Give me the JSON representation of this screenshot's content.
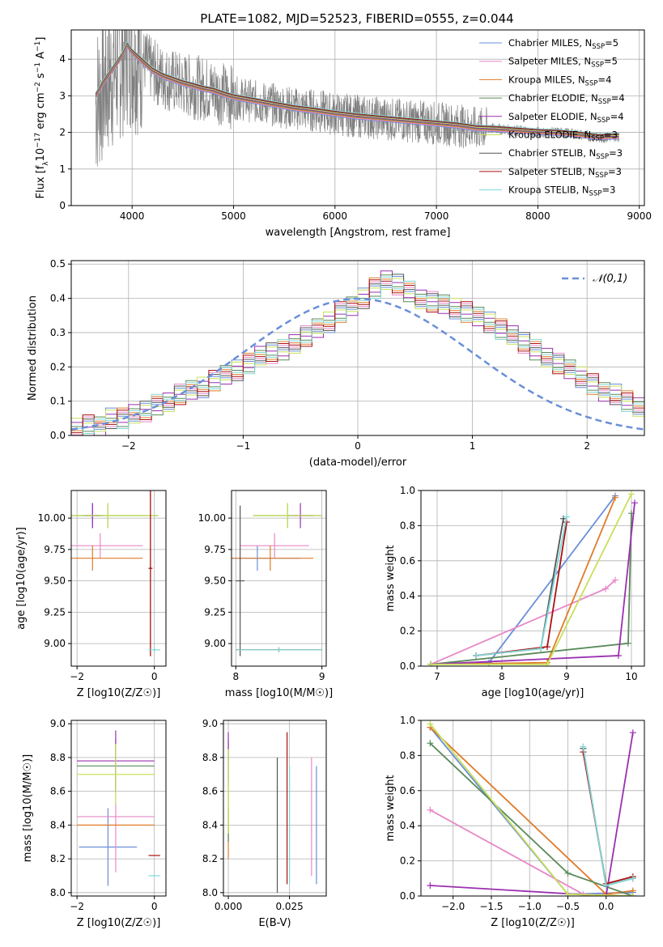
{
  "figure": {
    "title": "PLATE=1082, MJD=52523, FIBERID=0555, z=0.044"
  },
  "series_names": [
    "Chabrier MILES, N_SSP=5",
    "Salpeter MILES, N_SSP=5",
    "Kroupa MILES, N_SSP=4",
    "Chabrier ELODIE, N_SSP=4",
    "Salpeter ELODIE, N_SSP=4",
    "Kroupa ELODIE, N_SSP=3",
    "Chabrier STELIB, N_SSP=3",
    "Salpeter STELIB, N_SSP=3",
    "Kroupa STELIB, N_SSP=3"
  ],
  "legend_labels": [
    {
      "pre": "Chabrier MILES, N",
      "sub": "SSP",
      "post": "=5"
    },
    {
      "pre": "Salpeter MILES, N",
      "sub": "SSP",
      "post": "=5"
    },
    {
      "pre": "Kroupa MILES, N",
      "sub": "SSP",
      "post": "=4"
    },
    {
      "pre": "Chabrier ELODIE, N",
      "sub": "SSP",
      "post": "=4"
    },
    {
      "pre": "Salpeter ELODIE, N",
      "sub": "SSP",
      "post": "=4"
    },
    {
      "pre": "Kroupa ELODIE, N",
      "sub": "SSP",
      "post": "=3"
    },
    {
      "pre": "Chabrier STELIB, N",
      "sub": "SSP",
      "post": "=3"
    },
    {
      "pre": "Salpeter STELIB, N",
      "sub": "SSP",
      "post": "=3"
    },
    {
      "pre": "Kroupa STELIB, N",
      "sub": "SSP",
      "post": "=3"
    }
  ],
  "series_colors": [
    "#6a8fd8",
    "#e888c8",
    "#e07b2a",
    "#5a8a5a",
    "#9b30b0",
    "#c8e05a",
    "#555555",
    "#aa1111",
    "#80d8d8"
  ],
  "chart_data": [
    {
      "id": "spectrum",
      "type": "line",
      "title": "PLATE=1082, MJD=52523, FIBERID=0555, z=0.044",
      "xlabel": "wavelength [Angstrom, rest frame]",
      "ylabel_parts": {
        "pre": "Flux [f",
        "sub1": "λ",
        "mid": "10",
        "sup1": "−17",
        "mid2": " erg cm",
        "sup2": "−2",
        "mid3": " s",
        "sup3": "−1",
        "mid4": " A",
        "sup4": "−1",
        "post": "]"
      },
      "xlim": [
        3400,
        9050
      ],
      "ylim": [
        0,
        4.8
      ],
      "xticks": [
        4000,
        5000,
        6000,
        7000,
        8000,
        9000
      ],
      "yticks": [
        0,
        1,
        2,
        3,
        4
      ],
      "data_color": "#808080",
      "data": [
        [
          3640,
          2.8
        ],
        [
          3700,
          3.2
        ],
        [
          3800,
          3.6
        ],
        [
          3900,
          4.0
        ],
        [
          3950,
          4.3
        ],
        [
          4000,
          4.2
        ],
        [
          4100,
          4.0
        ],
        [
          4200,
          3.7
        ],
        [
          4300,
          3.5
        ],
        [
          4400,
          3.4
        ],
        [
          4500,
          3.3
        ],
        [
          4600,
          3.25
        ],
        [
          4700,
          3.2
        ],
        [
          4800,
          3.15
        ],
        [
          4900,
          3.05
        ],
        [
          5000,
          2.95
        ],
        [
          5200,
          2.85
        ],
        [
          5400,
          2.75
        ],
        [
          5600,
          2.65
        ],
        [
          5800,
          2.6
        ],
        [
          6000,
          2.5
        ],
        [
          6200,
          2.45
        ],
        [
          6400,
          2.4
        ],
        [
          6600,
          2.35
        ],
        [
          6800,
          2.3
        ],
        [
          7000,
          2.25
        ],
        [
          7200,
          2.2
        ],
        [
          7400,
          2.1
        ],
        [
          7600,
          2.1
        ],
        [
          7800,
          2.05
        ],
        [
          8000,
          2.0
        ],
        [
          8200,
          2.0
        ],
        [
          8400,
          1.95
        ],
        [
          8600,
          1.85
        ],
        [
          8800,
          1.9
        ]
      ],
      "model": [
        [
          3640,
          3.0
        ],
        [
          3700,
          3.3
        ],
        [
          3800,
          3.7
        ],
        [
          3900,
          4.1
        ],
        [
          3950,
          4.4
        ],
        [
          4000,
          4.2
        ],
        [
          4100,
          3.95
        ],
        [
          4200,
          3.7
        ],
        [
          4300,
          3.55
        ],
        [
          4400,
          3.45
        ],
        [
          4500,
          3.35
        ],
        [
          4600,
          3.28
        ],
        [
          4700,
          3.2
        ],
        [
          4800,
          3.15
        ],
        [
          4900,
          3.05
        ],
        [
          5000,
          2.97
        ],
        [
          5200,
          2.87
        ],
        [
          5400,
          2.77
        ],
        [
          5600,
          2.67
        ],
        [
          5800,
          2.6
        ],
        [
          6000,
          2.52
        ],
        [
          6200,
          2.45
        ],
        [
          6400,
          2.4
        ],
        [
          6600,
          2.35
        ],
        [
          6800,
          2.3
        ],
        [
          7000,
          2.25
        ],
        [
          7200,
          2.2
        ],
        [
          7400,
          2.12
        ],
        [
          7600,
          2.1
        ],
        [
          7800,
          2.06
        ],
        [
          8000,
          2.02
        ],
        [
          8200,
          2.0
        ],
        [
          8400,
          1.95
        ],
        [
          8600,
          1.88
        ],
        [
          8800,
          1.9
        ]
      ]
    },
    {
      "id": "residuals",
      "type": "histogram",
      "xlabel": "(data-model)/error",
      "ylabel": "Normed distribution",
      "xlim": [
        -2.5,
        2.5
      ],
      "ylim": [
        0,
        0.51
      ],
      "xticks": [
        -2,
        -1,
        0,
        1,
        2
      ],
      "yticks": [
        0.0,
        0.1,
        0.2,
        0.3,
        0.4,
        0.5
      ],
      "legend": "𝒩(0,1)",
      "bin_width": 0.1,
      "bin_start": -2.5,
      "values": [
        0.02,
        0.03,
        0.03,
        0.05,
        0.05,
        0.06,
        0.07,
        0.09,
        0.1,
        0.12,
        0.13,
        0.14,
        0.16,
        0.18,
        0.19,
        0.21,
        0.23,
        0.24,
        0.25,
        0.27,
        0.29,
        0.31,
        0.33,
        0.36,
        0.38,
        0.4,
        0.43,
        0.45,
        0.44,
        0.42,
        0.4,
        0.39,
        0.38,
        0.37,
        0.36,
        0.35,
        0.33,
        0.31,
        0.29,
        0.27,
        0.25,
        0.23,
        0.21,
        0.19,
        0.17,
        0.15,
        0.13,
        0.12,
        0.1,
        0.08
      ]
    },
    {
      "id": "age_vs_Z",
      "type": "errorbar",
      "xlabel": "Z [log10(Z/Z☉)]",
      "ylabel": "age [log10(age/yr)]",
      "xlim": [
        -2.15,
        0.3
      ],
      "ylim": [
        8.82,
        10.22
      ],
      "xticks": [
        -2,
        0
      ],
      "yticks": [
        9.0,
        9.25,
        9.5,
        9.75,
        10.0
      ],
      "points": [
        {
          "s": 0,
          "x": -1.6,
          "xe": 0.3,
          "y": 10.02,
          "ye": 0.1
        },
        {
          "s": 1,
          "x": -1.4,
          "xe": 1.1,
          "y": 9.78,
          "ye": 0.1
        },
        {
          "s": 2,
          "x": -1.6,
          "xe": 1.3,
          "y": 9.68,
          "ye": 0.1
        },
        {
          "s": 3,
          "x": -1.2,
          "xe": 1.3,
          "y": 10.02,
          "ye": 0.1
        },
        {
          "s": 4,
          "x": -1.6,
          "xe": 0.2,
          "y": 10.02,
          "ye": 0.1
        },
        {
          "s": 5,
          "x": -1.2,
          "xe": 1.3,
          "y": 10.02,
          "ye": 0.1
        },
        {
          "s": 6,
          "x": -0.1,
          "xe": 0.05,
          "y": 9.6,
          "ye": 0.7
        },
        {
          "s": 7,
          "x": -0.1,
          "xe": 0.05,
          "y": 9.6,
          "ye": 0.7
        },
        {
          "s": 8,
          "x": 0.0,
          "xe": 0.15,
          "y": 8.95,
          "ye": 0.02
        }
      ]
    },
    {
      "id": "age_vs_mass",
      "type": "errorbar",
      "xlabel": "mass [log10(M/M☉)]",
      "ylabel": "",
      "xlim": [
        7.95,
        9.05
      ],
      "ylim": [
        8.82,
        10.22
      ],
      "xticks": [
        8,
        9
      ],
      "yticks": [
        9.0,
        9.25,
        9.5,
        9.75,
        10.0
      ],
      "points": [
        {
          "s": 0,
          "x": 8.25,
          "xe": 0.5,
          "y": 9.68,
          "ye": 0.1
        },
        {
          "s": 1,
          "x": 8.45,
          "xe": 0.4,
          "y": 9.78,
          "ye": 0.1
        },
        {
          "s": 2,
          "x": 8.4,
          "xe": 0.5,
          "y": 9.68,
          "ye": 0.1
        },
        {
          "s": 3,
          "x": 8.6,
          "xe": 0.4,
          "y": 10.02,
          "ye": 0.1
        },
        {
          "s": 4,
          "x": 8.75,
          "xe": 0.15,
          "y": 10.02,
          "ye": 0.1
        },
        {
          "s": 5,
          "x": 8.6,
          "xe": 0.4,
          "y": 10.02,
          "ye": 0.1
        },
        {
          "s": 6,
          "x": 8.05,
          "xe": 0.05,
          "y": 9.5,
          "ye": 0.6
        },
        {
          "s": 7,
          "x": 8.5,
          "xe": 0.5,
          "y": 8.95,
          "ye": 0.02
        },
        {
          "s": 8,
          "x": 8.5,
          "xe": 0.5,
          "y": 8.95,
          "ye": 0.02
        }
      ]
    },
    {
      "id": "weight_vs_age",
      "type": "line",
      "xlabel": "age [log10(age/yr)]",
      "ylabel": "mass weight",
      "xlim": [
        6.75,
        10.2
      ],
      "ylim": [
        0,
        1
      ],
      "xticks": [
        7,
        8,
        9,
        10
      ],
      "yticks": [
        0.0,
        0.2,
        0.4,
        0.6,
        0.8,
        1.0
      ],
      "series": [
        {
          "s": 0,
          "x": [
            6.9,
            7.8,
            9.75
          ],
          "y": [
            0.01,
            0.02,
            0.97
          ]
        },
        {
          "s": 1,
          "x": [
            6.9,
            9.6,
            9.75
          ],
          "y": [
            0.01,
            0.44,
            0.49
          ]
        },
        {
          "s": 2,
          "x": [
            6.9,
            8.7,
            9.75
          ],
          "y": [
            0.01,
            0.02,
            0.96
          ]
        },
        {
          "s": 3,
          "x": [
            6.9,
            9.95,
            10.0
          ],
          "y": [
            0.01,
            0.13,
            0.87
          ]
        },
        {
          "s": 4,
          "x": [
            6.9,
            9.8,
            10.05
          ],
          "y": [
            0.01,
            0.06,
            0.93
          ]
        },
        {
          "s": 5,
          "x": [
            6.9,
            8.7,
            10.0
          ],
          "y": [
            0.01,
            0.01,
            0.98
          ]
        },
        {
          "s": 6,
          "x": [
            7.6,
            8.6,
            8.95
          ],
          "y": [
            0.06,
            0.1,
            0.84
          ]
        },
        {
          "s": 7,
          "x": [
            7.6,
            8.7,
            9.0
          ],
          "y": [
            0.06,
            0.11,
            0.82
          ]
        },
        {
          "s": 8,
          "x": [
            7.6,
            8.6,
            9.0
          ],
          "y": [
            0.06,
            0.1,
            0.85
          ]
        }
      ]
    },
    {
      "id": "mass_vs_Z",
      "type": "errorbar",
      "xlabel": "Z [log10(Z/Z☉)]",
      "ylabel": "mass [log10(M/M☉)]",
      "xlim": [
        -2.15,
        0.3
      ],
      "ylim": [
        7.98,
        9.02
      ],
      "xticks": [
        -2,
        0
      ],
      "yticks": [
        8.0,
        8.2,
        8.4,
        8.6,
        8.8,
        9.0
      ],
      "points": [
        {
          "s": 0,
          "x": -1.2,
          "xe": 0.75,
          "y": 8.27,
          "ye": 0.23
        },
        {
          "s": 1,
          "x": -1.0,
          "xe": 1.0,
          "y": 8.45,
          "ye": 0.33
        },
        {
          "s": 2,
          "x": -1.0,
          "xe": 1.0,
          "y": 8.4,
          "ye": 0.0
        },
        {
          "s": 3,
          "x": -1.0,
          "xe": 1.0,
          "y": 8.75,
          "ye": 0.16
        },
        {
          "s": 4,
          "x": -1.0,
          "xe": 1.0,
          "y": 8.78,
          "ye": 0.18
        },
        {
          "s": 5,
          "x": -1.0,
          "xe": 1.0,
          "y": 8.7,
          "ye": 0.18
        },
        {
          "s": 6,
          "x": -0.1,
          "xe": 0.0,
          "y": 8.05,
          "ye": 0.0
        },
        {
          "s": 7,
          "x": 0.0,
          "xe": 0.15,
          "y": 8.22,
          "ye": 0.0
        },
        {
          "s": 8,
          "x": 0.0,
          "xe": 0.15,
          "y": 8.1,
          "ye": 0.0
        }
      ]
    },
    {
      "id": "mass_vs_EBV",
      "type": "errorbar",
      "xlabel": "E(B-V)",
      "ylabel": "",
      "xlim": [
        -0.002,
        0.04
      ],
      "ylim": [
        7.98,
        9.02
      ],
      "xticks": [
        0.0,
        0.025
      ],
      "yticks": [
        8.0,
        8.2,
        8.4,
        8.6,
        8.8,
        9.0
      ],
      "points": [
        {
          "s": 0,
          "x": 0.036,
          "xe": 0,
          "y": 8.4,
          "ye": 0.35
        },
        {
          "s": 1,
          "x": 0.034,
          "xe": 0,
          "y": 8.45,
          "ye": 0.35
        },
        {
          "s": 2,
          "x": 0.0,
          "xe": 0,
          "y": 8.35,
          "ye": 0.15
        },
        {
          "s": 3,
          "x": 0.0,
          "xe": 0,
          "y": 8.6,
          "ye": 0.3
        },
        {
          "s": 4,
          "x": 0.0,
          "xe": 0,
          "y": 8.8,
          "ye": 0.15
        },
        {
          "s": 5,
          "x": 0.0,
          "xe": 0,
          "y": 8.6,
          "ye": 0.25
        },
        {
          "s": 6,
          "x": 0.02,
          "xe": 0,
          "y": 8.4,
          "ye": 0.4
        },
        {
          "s": 7,
          "x": 0.024,
          "xe": 0,
          "y": 8.5,
          "ye": 0.45
        },
        {
          "s": 8,
          "x": 0.025,
          "xe": 0,
          "y": 8.4,
          "ye": 0.35
        }
      ]
    },
    {
      "id": "weight_vs_Z",
      "type": "line",
      "xlabel": "Z [log10(Z/Z☉)]",
      "ylabel": "mass weight",
      "xlim": [
        -2.42,
        0.5
      ],
      "ylim": [
        0,
        1
      ],
      "xticks": [
        -2.0,
        -1.5,
        -1.0,
        -0.5,
        0.0
      ],
      "yticks": [
        0.0,
        0.2,
        0.4,
        0.6,
        0.8,
        1.0
      ],
      "series": [
        {
          "s": 0,
          "x": [
            -2.3,
            -0.5,
            0.35
          ],
          "y": [
            0.96,
            0.01,
            0.02
          ]
        },
        {
          "s": 1,
          "x": [
            -2.3,
            -0.3,
            0.35
          ],
          "y": [
            0.49,
            0.01,
            0.0
          ]
        },
        {
          "s": 2,
          "x": [
            -2.3,
            0.0,
            0.35
          ],
          "y": [
            0.96,
            0.01,
            0.03
          ]
        },
        {
          "s": 3,
          "x": [
            -2.3,
            -0.5,
            0.35
          ],
          "y": [
            0.87,
            0.13,
            0.0
          ]
        },
        {
          "s": 4,
          "x": [
            -2.3,
            0.0,
            0.35
          ],
          "y": [
            0.06,
            0.0,
            0.93
          ]
        },
        {
          "s": 5,
          "x": [
            -2.3,
            -0.5,
            0.35
          ],
          "y": [
            0.98,
            0.01,
            0.0
          ]
        },
        {
          "s": 6,
          "x": [
            -0.3,
            0.0,
            0.35
          ],
          "y": [
            0.84,
            0.06,
            0.1
          ]
        },
        {
          "s": 7,
          "x": [
            -0.3,
            0.0,
            0.35
          ],
          "y": [
            0.82,
            0.07,
            0.11
          ]
        },
        {
          "s": 8,
          "x": [
            -0.3,
            0.0,
            0.35
          ],
          "y": [
            0.85,
            0.06,
            0.1
          ]
        }
      ]
    }
  ]
}
